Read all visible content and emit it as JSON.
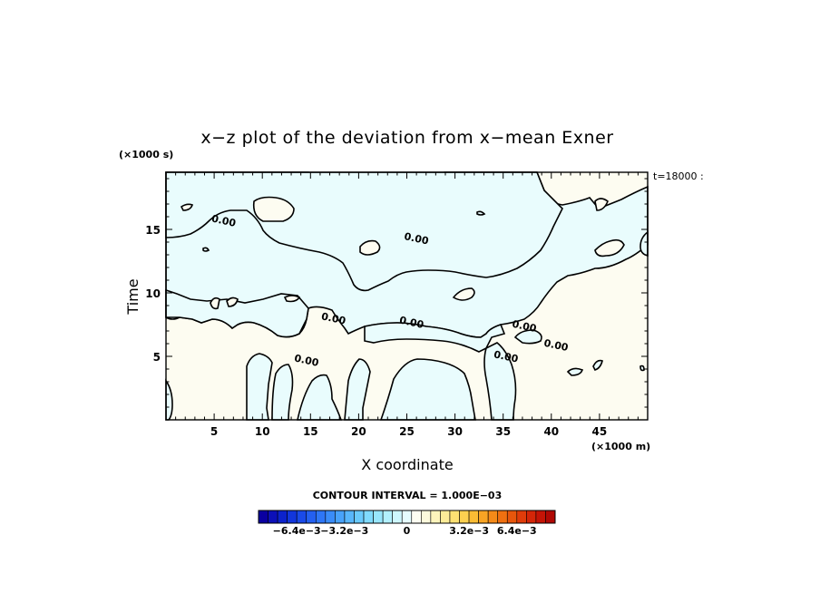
{
  "chart_data": {
    "type": "contour",
    "title": "x−z plot of the deviation from x−mean Exner",
    "xlabel": "X coordinate",
    "ylabel": "Time",
    "x_units": "(×1000 m)",
    "y_units": "(×1000 s)",
    "time_label": "t=18000 :",
    "xlim": [
      0,
      50
    ],
    "ylim": [
      0,
      19.5
    ],
    "x_ticks": [
      5,
      10,
      15,
      20,
      25,
      30,
      35,
      40,
      45
    ],
    "y_ticks": [
      5,
      10,
      15
    ],
    "contour_labels": [
      {
        "text": "0.00",
        "x": 6.0,
        "y": 15.7
      },
      {
        "text": "0.00",
        "x": 26.0,
        "y": 14.3
      },
      {
        "text": "0.00",
        "x": 17.4,
        "y": 8.0
      },
      {
        "text": "0.00",
        "x": 25.5,
        "y": 7.7
      },
      {
        "text": "0.00",
        "x": 37.2,
        "y": 7.4
      },
      {
        "text": "0.00",
        "x": 40.5,
        "y": 5.9
      },
      {
        "text": "0.00",
        "x": 14.6,
        "y": 4.7
      },
      {
        "text": "0.00",
        "x": 35.3,
        "y": 5.0
      }
    ],
    "colors": {
      "negative_fill": "#e9fcfd",
      "positive_fill": "#fdfcf1",
      "contour_line": "#000000"
    }
  },
  "contour_interval": "CONTOUR INTERVAL = 1.000E−03",
  "colorbar": {
    "colors": [
      "#0a00a0",
      "#0c10b8",
      "#0c22cc",
      "#1236dc",
      "#1a4ae8",
      "#2460f0",
      "#2e76f6",
      "#3a8cf8",
      "#48a2fa",
      "#58b6fb",
      "#6acafc",
      "#80dafd",
      "#98e6fd",
      "#b2f0fe",
      "#cef7fe",
      "#e6fcfe",
      "#fdfdf2",
      "#fdfadc",
      "#fdf4bc",
      "#fdec98",
      "#fde072",
      "#fcd050",
      "#fabc34",
      "#f8a424",
      "#f48a18",
      "#f07010",
      "#e8560c",
      "#e03c0a",
      "#d42608",
      "#c41406",
      "#b00804"
    ],
    "tick_labels": [
      "−6.4e−3",
      "−3.2e−3",
      "0",
      "3.2e−3",
      "6.4e−3"
    ],
    "tick_positions": [
      0.129,
      0.29,
      0.5,
      0.71,
      0.871
    ]
  }
}
